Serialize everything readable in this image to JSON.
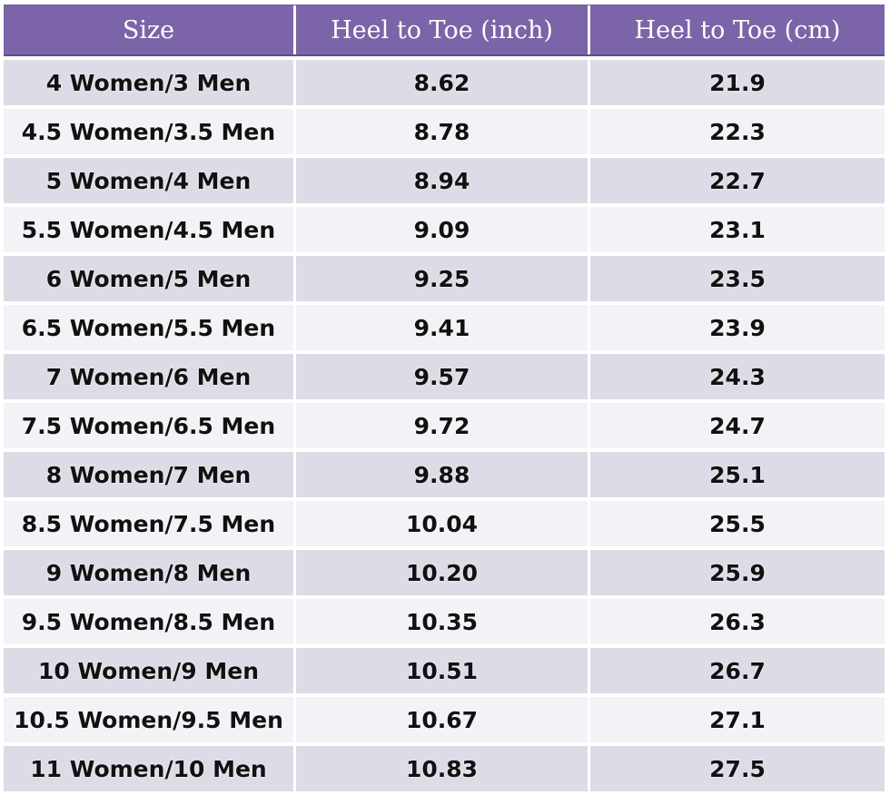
{
  "table": {
    "headers": {
      "size": "Size",
      "inch": "Heel to Toe (inch)",
      "cm": "Heel to Toe (cm)"
    },
    "rows": [
      {
        "size": "4 Women/3 Men",
        "inch": "8.62",
        "cm": "21.9"
      },
      {
        "size": "4.5 Women/3.5 Men",
        "inch": "8.78",
        "cm": "22.3"
      },
      {
        "size": "5 Women/4 Men",
        "inch": "8.94",
        "cm": "22.7"
      },
      {
        "size": "5.5 Women/4.5 Men",
        "inch": "9.09",
        "cm": "23.1"
      },
      {
        "size": "6 Women/5 Men",
        "inch": "9.25",
        "cm": "23.5"
      },
      {
        "size": "6.5 Women/5.5 Men",
        "inch": "9.41",
        "cm": "23.9"
      },
      {
        "size": "7 Women/6 Men",
        "inch": "9.57",
        "cm": "24.3"
      },
      {
        "size": "7.5 Women/6.5 Men",
        "inch": "9.72",
        "cm": "24.7"
      },
      {
        "size": "8 Women/7 Men",
        "inch": "9.88",
        "cm": "25.1"
      },
      {
        "size": "8.5 Women/7.5 Men",
        "inch": "10.04",
        "cm": "25.5"
      },
      {
        "size": "9 Women/8 Men",
        "inch": "10.20",
        "cm": "25.9"
      },
      {
        "size": "9.5 Women/8.5 Men",
        "inch": "10.35",
        "cm": "26.3"
      },
      {
        "size": "10 Women/9 Men",
        "inch": "10.51",
        "cm": "26.7"
      },
      {
        "size": "10.5 Women/9.5 Men",
        "inch": "10.67",
        "cm": "27.1"
      },
      {
        "size": "11 Women/10 Men",
        "inch": "10.83",
        "cm": "27.5"
      }
    ]
  },
  "colors": {
    "header_bg": "#7b64a7",
    "row_odd": "#dddbe6",
    "row_even": "#f3f2f6"
  }
}
